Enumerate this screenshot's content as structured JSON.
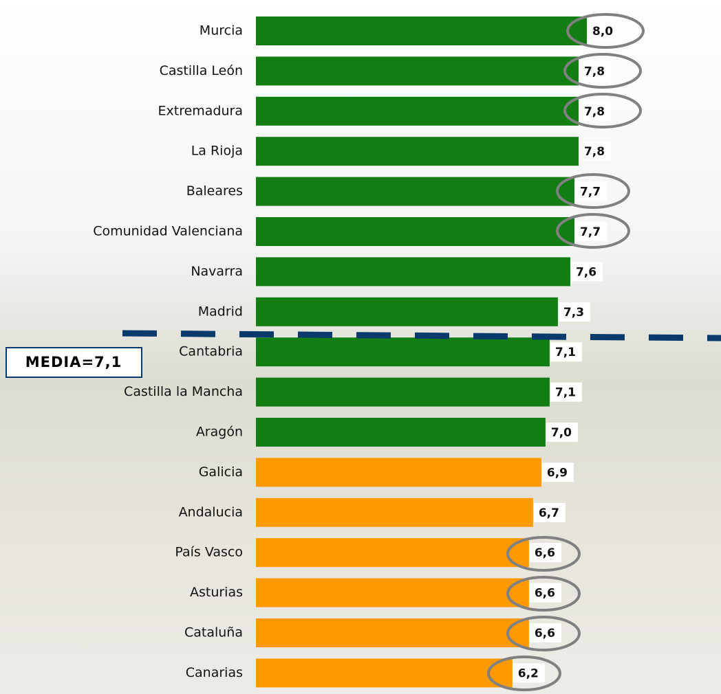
{
  "chart_data": {
    "type": "bar",
    "orientation": "horizontal",
    "categories": [
      "Murcia",
      "Castilla León",
      "Extremadura",
      "La Rioja",
      "Baleares",
      "Comunidad Valenciana",
      "Navarra",
      "Madrid",
      "Cantabria",
      "Castilla la Mancha",
      "Aragón",
      "Galicia",
      "Andalucia",
      "País Vasco",
      "Asturias",
      "Cataluña",
      "Canarias"
    ],
    "values": [
      8.0,
      7.8,
      7.8,
      7.8,
      7.7,
      7.7,
      7.6,
      7.3,
      7.1,
      7.1,
      7.0,
      6.9,
      6.7,
      6.6,
      6.6,
      6.6,
      6.2
    ],
    "value_labels": [
      "8,0",
      "7,8",
      "7,8",
      "7,8",
      "7,7",
      "7,7",
      "7,6",
      "7,3",
      "7,1",
      "7,1",
      "7,0",
      "6,9",
      "6,7",
      "6,6",
      "6,6",
      "6,6",
      "6,2"
    ],
    "colors": [
      "#127d12",
      "#127d12",
      "#127d12",
      "#127d12",
      "#127d12",
      "#127d12",
      "#127d12",
      "#127d12",
      "#127d12",
      "#127d12",
      "#127d12",
      "#ff9900",
      "#ff9900",
      "#ff9900",
      "#ff9900",
      "#ff9900",
      "#ff9900"
    ],
    "xlim": [
      0,
      8
    ],
    "annotation": "MEDIA=7,1"
  }
}
